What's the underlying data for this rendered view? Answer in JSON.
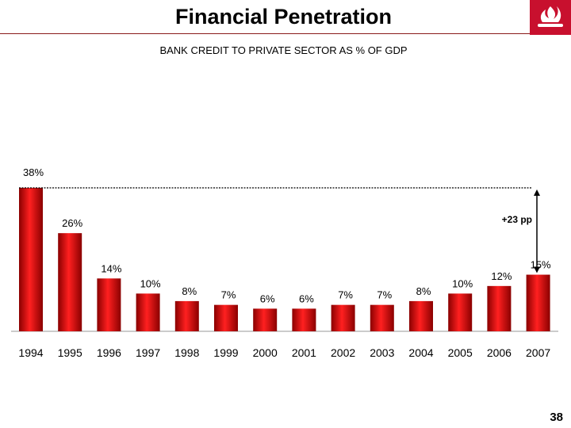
{
  "header": {
    "title": "Financial Penetration",
    "subtitle": "BANK CREDIT TO PRIVATE SECTOR AS % OF GDP",
    "logo": "santander-flame-icon",
    "brand_color": "#c8102e"
  },
  "chart_data": {
    "type": "bar",
    "categories": [
      "1994",
      "1995",
      "1996",
      "1997",
      "1998",
      "1999",
      "2000",
      "2001",
      "2002",
      "2003",
      "2004",
      "2005",
      "2006",
      "2007"
    ],
    "values": [
      38,
      26,
      14,
      10,
      8,
      7,
      6,
      6,
      7,
      7,
      8,
      10,
      12,
      15
    ],
    "data_labels": [
      "38%",
      "26%",
      "14%",
      "10%",
      "8%",
      "7%",
      "6%",
      "6%",
      "7%",
      "7%",
      "8%",
      "10%",
      "12%",
      "15%"
    ],
    "title": "BANK CREDIT TO PRIVATE SECTOR AS % OF GDP",
    "xlabel": "",
    "ylabel": "",
    "ylim": [
      0,
      38
    ],
    "grid": false,
    "bar_color": "#e00000",
    "annotations": [
      {
        "text": "+23 pp",
        "from_value": 15,
        "to_value": 38,
        "reference_line_value": 38
      }
    ]
  },
  "footer": {
    "page_number": "38"
  }
}
